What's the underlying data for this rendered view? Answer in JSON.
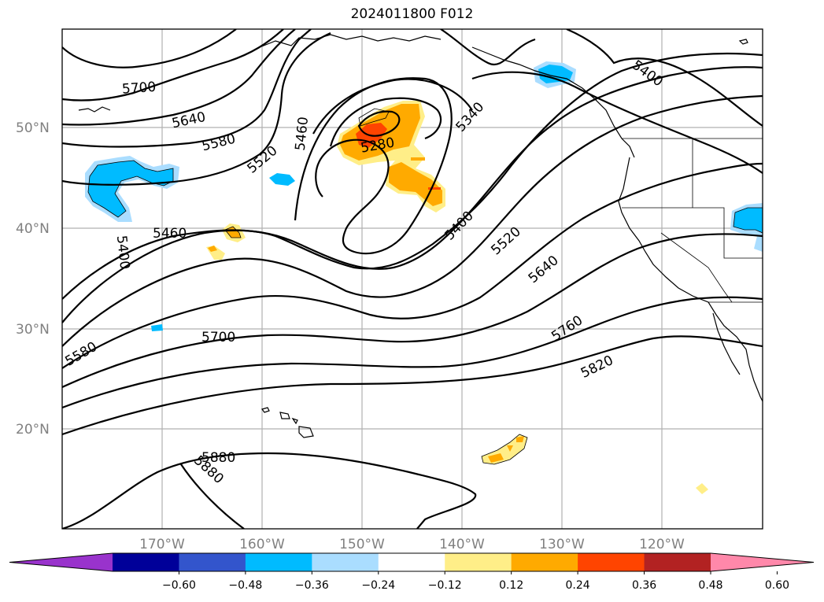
{
  "title": "2024011800 F012",
  "lat_labels": [
    "50°N",
    "40°N",
    "30°N",
    "20°N"
  ],
  "lon_labels": [
    "170°W",
    "160°W",
    "150°W",
    "140°W",
    "130°W",
    "120°W"
  ],
  "colorbar": {
    "colors": [
      "#9933cc",
      "#000099",
      "#3355cc",
      "#00bbff",
      "#aaddff",
      "#ffffff",
      "#ffee88",
      "#ffaa00",
      "#ff4400",
      "#b22222",
      "#ff88aa"
    ],
    "tick_labels": [
      "−0.60",
      "−0.48",
      "−0.36",
      "−0.24",
      "−0.12",
      "0.12",
      "0.24",
      "0.36",
      "0.48",
      "0.60"
    ]
  },
  "contour_labels": [
    {
      "id": "c5700-a",
      "text": "5700"
    },
    {
      "id": "c5640-a",
      "text": "5640"
    },
    {
      "id": "c5580-a",
      "text": "5580"
    },
    {
      "id": "c5520-a",
      "text": "5520"
    },
    {
      "id": "c5460-a",
      "text": "5460"
    },
    {
      "id": "c5280",
      "text": "5280"
    },
    {
      "id": "c5340",
      "text": "5340"
    },
    {
      "id": "c5400-a",
      "text": "5400"
    },
    {
      "id": "c5400-b",
      "text": "5400"
    },
    {
      "id": "c5460-b",
      "text": "5460"
    },
    {
      "id": "c5400-c",
      "text": "5400"
    },
    {
      "id": "c5520-b",
      "text": "5520"
    },
    {
      "id": "c5640-b",
      "text": "5640"
    },
    {
      "id": "c5760",
      "text": "5760"
    },
    {
      "id": "c5580-b",
      "text": "5580"
    },
    {
      "id": "c5700-b",
      "text": "5700"
    },
    {
      "id": "c5820",
      "text": "5820"
    },
    {
      "id": "c5880-a",
      "text": "5880"
    },
    {
      "id": "c5880-b",
      "text": "5880"
    }
  ]
}
